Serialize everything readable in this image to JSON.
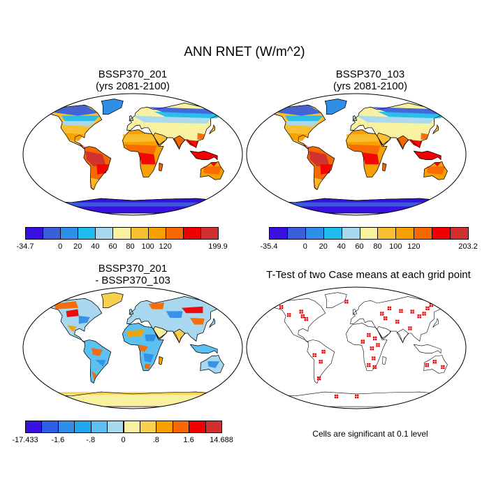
{
  "figure": {
    "title": "ANN RNET (W/m^2)",
    "note": "Cells are significant at 0.1 level"
  },
  "panels": [
    {
      "id": "p1",
      "title_line1": "BSSP370_201",
      "title_line2": "(yrs 2081-2100)"
    },
    {
      "id": "p2",
      "title_line1": "BSSP370_103",
      "title_line2": "(yrs 2081-2100)"
    },
    {
      "id": "p3",
      "title_line1": "BSSP370_201",
      "title_line2": "- BSSP370_103"
    },
    {
      "id": "p4",
      "title_line1": "T-Test of two Case means at each grid point",
      "title_line2": ""
    }
  ],
  "chart_data": [
    {
      "type": "map",
      "title": "BSSP370_201 (yrs 2081-2100)",
      "colorbar": {
        "colors": [
          "#3a10e0",
          "#3a5fdc",
          "#2f8fe8",
          "#1fbaf0",
          "#a8d8f0",
          "#f8f2a0",
          "#f8c030",
          "#f8a000",
          "#f86800",
          "#f00000",
          "#d03030"
        ],
        "labels": [
          "-34.7",
          "0",
          "20",
          "40",
          "60",
          "80",
          "100",
          "120",
          "199.9"
        ],
        "label_slots": [
          0,
          2,
          3,
          4,
          5,
          6,
          7,
          8,
          11
        ]
      }
    },
    {
      "type": "map",
      "title": "BSSP370_103 (yrs 2081-2100)",
      "colorbar": {
        "colors": [
          "#3a10e0",
          "#3a5fdc",
          "#2f8fe8",
          "#1fbaf0",
          "#a8d8f0",
          "#f8f2a0",
          "#f8c030",
          "#f8a000",
          "#f86800",
          "#f00000",
          "#d03030"
        ],
        "labels": [
          "-35.4",
          "0",
          "20",
          "40",
          "60",
          "80",
          "100",
          "120",
          "203.2"
        ],
        "label_slots": [
          0,
          2,
          3,
          4,
          5,
          6,
          7,
          8,
          11
        ]
      }
    },
    {
      "type": "map",
      "title": "BSSP370_201 - BSSP370_103",
      "colorbar": {
        "colors": [
          "#3a10e0",
          "#2f5ee8",
          "#2f8fe8",
          "#1fa8f0",
          "#5cc0f0",
          "#a8d8f0",
          "#f8f2a0",
          "#f8d050",
          "#f8a000",
          "#f86800",
          "#f00000",
          "#d03030"
        ],
        "labels": [
          "-17.433",
          "-1.6",
          "-.8",
          "0",
          ".8",
          "1.6",
          "14.688"
        ],
        "label_slots": [
          0,
          2,
          4,
          6,
          8,
          10,
          12
        ]
      }
    },
    {
      "type": "map",
      "title": "T-Test of two Case means at each grid point",
      "colorbar": null
    }
  ]
}
